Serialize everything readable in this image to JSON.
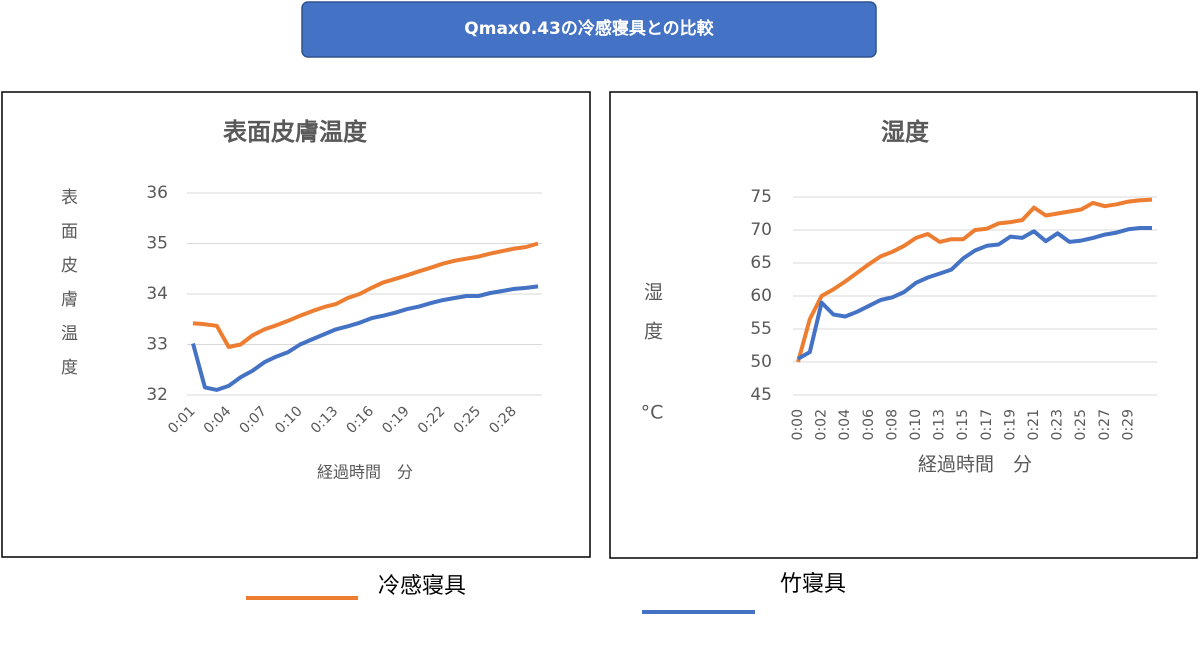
{
  "banner": {
    "title": "Qmax0.43の冷感寝具との比較"
  },
  "chart_data": [
    {
      "type": "line",
      "title": "表面皮膚温度",
      "ylabel": "表面皮膚温度",
      "xlabel": "経過時間　分",
      "categories": [
        "0:01",
        null,
        null,
        "0:04",
        null,
        null,
        "0:07",
        null,
        null,
        "0:10",
        null,
        null,
        "0:13",
        null,
        null,
        "0:16",
        null,
        null,
        "0:19",
        null,
        null,
        "0:22",
        null,
        null,
        "0:25",
        null,
        null,
        "0:28",
        null,
        null
      ],
      "ylim": [
        32,
        36
      ],
      "yticks": [
        32,
        33,
        34,
        35,
        36
      ],
      "grid": true,
      "series": [
        {
          "name": "冷感寝具",
          "color": "#ed7d31",
          "values": [
            33.42,
            33.4,
            33.37,
            32.95,
            33.0,
            33.18,
            33.3,
            33.38,
            33.47,
            33.57,
            33.66,
            33.74,
            33.8,
            33.92,
            34.0,
            34.12,
            34.23,
            34.3,
            34.37,
            34.45,
            34.52,
            34.6,
            34.66,
            34.7,
            34.74,
            34.8,
            34.85,
            34.9,
            34.93,
            35.0
          ]
        },
        {
          "name": "竹寝具",
          "color": "#4472c4",
          "values": [
            33.02,
            32.15,
            32.1,
            32.18,
            32.35,
            32.48,
            32.65,
            32.76,
            32.85,
            33.0,
            33.1,
            33.2,
            33.3,
            33.36,
            33.43,
            33.52,
            33.57,
            33.63,
            33.7,
            33.75,
            33.82,
            33.88,
            33.92,
            33.96,
            33.96,
            34.02,
            34.06,
            34.1,
            34.12,
            34.15
          ]
        }
      ]
    },
    {
      "type": "line",
      "title": "湿度",
      "ylabel": "湿度",
      "yunit": "°C",
      "xlabel": "経過時間　分",
      "categories": [
        "0:00",
        null,
        "0:02",
        null,
        "0:04",
        null,
        "0:06",
        null,
        "0:08",
        null,
        "0:10",
        null,
        "0:13",
        null,
        "0:15",
        null,
        "0:17",
        null,
        "0:19",
        null,
        "0:21",
        null,
        "0:23",
        null,
        "0:25",
        null,
        "0:27",
        null,
        "0:29",
        null,
        null
      ],
      "ylim": [
        45,
        75
      ],
      "yticks": [
        45,
        50,
        55,
        60,
        65,
        70,
        75
      ],
      "grid": true,
      "series": [
        {
          "name": "冷感寝具",
          "color": "#ed7d31",
          "values": [
            50,
            56.5,
            60,
            61,
            62.2,
            63.5,
            64.8,
            66,
            66.7,
            67.6,
            68.8,
            69.4,
            68.2,
            68.6,
            68.6,
            70,
            70.2,
            71,
            71.2,
            71.5,
            73.4,
            72.2,
            72.5,
            72.8,
            73.1,
            74.1,
            73.6,
            73.9,
            74.3,
            74.5,
            74.6
          ]
        },
        {
          "name": "竹寝具",
          "color": "#4472c4",
          "values": [
            50.5,
            51.5,
            59,
            57.2,
            56.9,
            57.6,
            58.5,
            59.4,
            59.8,
            60.6,
            62,
            62.8,
            63.4,
            64,
            65.7,
            66.9,
            67.6,
            67.8,
            69,
            68.8,
            69.8,
            68.3,
            69.5,
            68.2,
            68.4,
            68.8,
            69.3,
            69.6,
            70.1,
            70.3,
            70.3
          ]
        }
      ]
    }
  ]
}
